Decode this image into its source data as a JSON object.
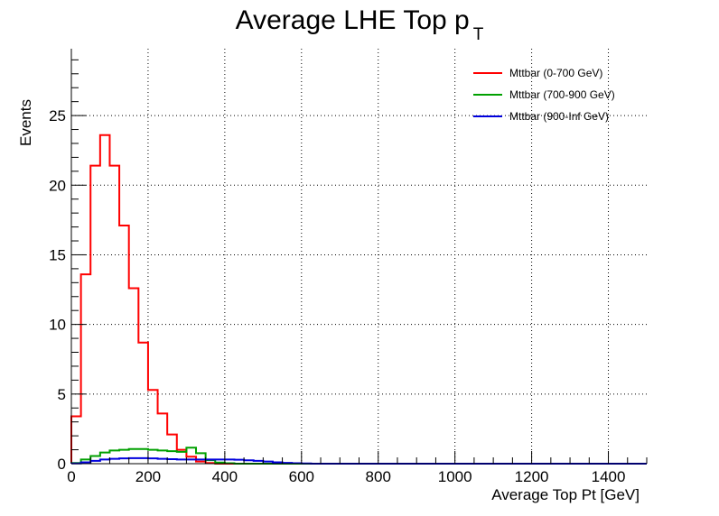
{
  "chart_data": {
    "type": "histogram",
    "title_main": "Average LHE Top p",
    "title_sub": "T",
    "xlabel": "Average Top Pt [GeV]",
    "ylabel": "Events",
    "xlim": [
      0,
      1500
    ],
    "ylim": [
      0,
      29.8
    ],
    "grid": true,
    "legend_position": "top-right",
    "x_ticks": [
      0,
      200,
      400,
      600,
      800,
      1000,
      1200,
      1400
    ],
    "y_ticks": [
      0,
      5,
      10,
      15,
      20,
      25
    ],
    "bin_width": 25,
    "series": [
      {
        "name": "Mttbar (0-700 GeV)",
        "color": "#ff0000",
        "values": [
          3.4,
          13.6,
          21.4,
          23.6,
          21.4,
          17.1,
          12.6,
          8.7,
          5.3,
          3.6,
          2.1,
          1.0,
          0.5,
          0.15,
          0.05,
          0.0
        ]
      },
      {
        "name": "Mttbar (700-900 GeV)",
        "color": "#00a000",
        "values": [
          0.05,
          0.3,
          0.55,
          0.8,
          0.95,
          1.0,
          1.05,
          1.05,
          1.0,
          0.95,
          0.9,
          0.85,
          1.15,
          0.75,
          0.25,
          0.08,
          0.03,
          0.0
        ]
      },
      {
        "name": "Mttbar (900-Inf GeV)",
        "color": "#0000dd",
        "values": [
          0.02,
          0.1,
          0.2,
          0.3,
          0.35,
          0.38,
          0.4,
          0.4,
          0.38,
          0.35,
          0.32,
          0.3,
          0.3,
          0.3,
          0.3,
          0.3,
          0.3,
          0.28,
          0.24,
          0.2,
          0.15,
          0.1,
          0.06,
          0.03,
          0.02,
          0.0
        ]
      }
    ]
  }
}
